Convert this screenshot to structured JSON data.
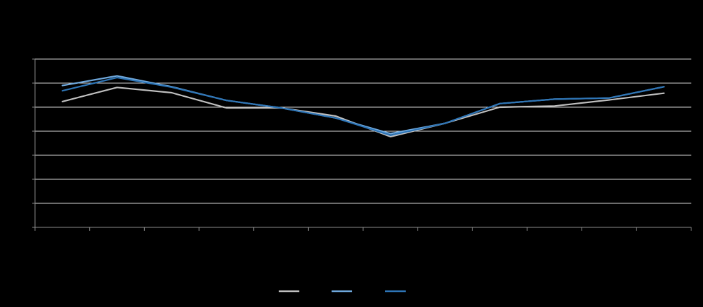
{
  "colors": {
    "background": "#000000",
    "grid": "#d9d9d9",
    "axis": "#8c8c8c"
  },
  "chart_data": {
    "type": "line",
    "title": "",
    "xlabel": "",
    "ylabel": "",
    "x": [
      1,
      2,
      3,
      4,
      5,
      6,
      7,
      8,
      9,
      10,
      11,
      12
    ],
    "ylim": [
      0,
      7
    ],
    "grid": true,
    "legend_position": "bottom",
    "series": [
      {
        "color": "#bfbfbf",
        "values": [
          5.23,
          5.82,
          5.6,
          4.97,
          4.97,
          4.63,
          3.77,
          4.33,
          5.0,
          5.05,
          5.3,
          5.58
        ]
      },
      {
        "color": "#6fa8dc",
        "values": [
          5.9,
          6.3,
          5.85,
          5.28,
          4.97,
          4.55,
          3.9,
          4.33,
          5.15,
          5.33,
          5.38,
          5.85
        ]
      },
      {
        "color": "#2e75b6",
        "values": [
          5.68,
          6.23,
          5.83,
          5.28,
          4.97,
          4.55,
          3.83,
          4.33,
          5.15,
          5.33,
          5.38,
          5.85
        ]
      }
    ]
  }
}
